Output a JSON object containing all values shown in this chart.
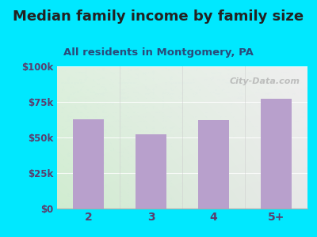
{
  "title": "Median family income by family size",
  "subtitle": "All residents in Montgomery, PA",
  "categories": [
    "2",
    "3",
    "4",
    "5+"
  ],
  "values": [
    63000,
    52000,
    62000,
    77000
  ],
  "bar_color": "#b8a0cc",
  "ylim": [
    0,
    100000
  ],
  "yticks": [
    0,
    25000,
    50000,
    75000,
    100000
  ],
  "ytick_labels": [
    "$0",
    "$25k",
    "$50k",
    "$75k",
    "$100k"
  ],
  "background_outer": "#00e8ff",
  "bg_top_left": "#d6edd6",
  "bg_top_right": "#e8e8e8",
  "bg_bottom_left": "#e8f5e0",
  "bg_bottom_right": "#f0f0f0",
  "title_fontsize": 13,
  "subtitle_fontsize": 9.5,
  "title_color": "#222222",
  "subtitle_color": "#2a4a7a",
  "tick_color": "#5a3e6e",
  "watermark": "City-Data.com"
}
